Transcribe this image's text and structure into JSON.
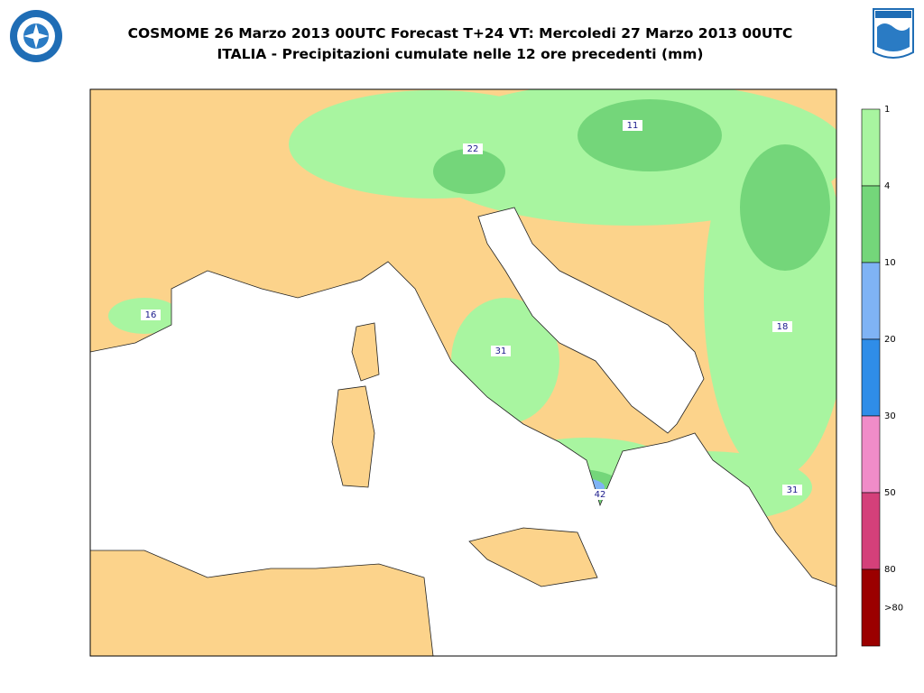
{
  "header": {
    "title": "COSMOME 26 Marzo 2013 00UTC Forecast T+24 VT: Mercoledi 27 Marzo 2013 00UTC",
    "subtitle": "ITALIA - Precipitazioni cumulate nelle 12 ore precedenti (mm)"
  },
  "map": {
    "max_labels": [
      11,
      22,
      16,
      18,
      31,
      42,
      31
    ]
  },
  "colorbar": {
    "labels": [
      1,
      4,
      10,
      20,
      30,
      50,
      80,
      ">80"
    ],
    "colors": [
      "#a8f5a0",
      "#74d67a",
      "#7fb3f5",
      "#2f8de8",
      "#f08cc8",
      "#d4407a",
      "#9b0000"
    ]
  }
}
